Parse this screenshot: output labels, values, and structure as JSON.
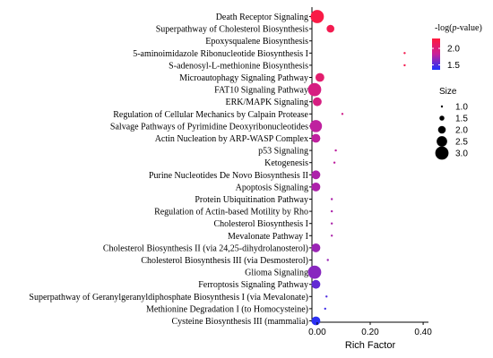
{
  "chart_data": {
    "type": "scatter",
    "title": "",
    "xlabel": "Rich Factor",
    "ylabel": "",
    "xlim": [
      -0.02,
      0.42
    ],
    "xticks": [
      "0.00",
      "0.20",
      "0.40"
    ],
    "xtick_values": [
      0.0,
      0.2,
      0.4
    ],
    "categories": [
      "Death Receptor Signaling",
      "Superpathway of Cholesterol Biosynthesis",
      "Epoxysqualene Biosynthesis",
      "5-aminoimidazole Ribonucleotide Biosynthesis I",
      "S-adenosyl-L-methionine Biosynthesis",
      "Microautophagy Signaling Pathway",
      "FAT10 Signaling Pathway",
      "ERK/MAPK Signaling",
      "Regulation of Cellular Mechanics by Calpain Protease",
      "Salvage Pathways of Pyrimidine Deoxyribonucleotides",
      "Actin Nucleation by ARP-WASP Complex",
      "p53 Signaling",
      "Ketogenesis",
      "Purine Nucleotides De Novo Biosynthesis II",
      "Apoptosis Signaling",
      "Protein Ubiquitination Pathway",
      "Regulation of Actin-based Motility by Rho",
      "Cholesterol Biosynthesis I",
      "Mevalonate Pathway I",
      "Cholesterol Biosynthesis II (via 24,25-dihydrolanosterol)",
      "Cholesterol Biosynthesis III (via Desmosterol)",
      "Glioma Signaling",
      "Ferroptosis Signaling Pathway",
      "Superpathway of Geranylgeranyldiphosphate Biosynthesis I (via Mevalonate)",
      "Methionine Degradation I (to Homocysteine)",
      "Cysteine Biosynthesis III (mammalia)"
    ],
    "points": [
      {
        "rich_factor": 0.0,
        "size": 3.0,
        "neglogp": 2.25
      },
      {
        "rich_factor": 0.05,
        "size": 2.0,
        "neglogp": 2.2
      },
      {
        "rich_factor": null,
        "size": null,
        "neglogp": null
      },
      {
        "rich_factor": 0.33,
        "size": 1.0,
        "neglogp": 2.2
      },
      {
        "rich_factor": 0.33,
        "size": 1.0,
        "neglogp": 2.2
      },
      {
        "rich_factor": 0.01,
        "size": 2.2,
        "neglogp": 2.05
      },
      {
        "rich_factor": -0.01,
        "size": 3.0,
        "neglogp": 1.95
      },
      {
        "rich_factor": 0.0,
        "size": 2.2,
        "neglogp": 1.95
      },
      {
        "rich_factor": 0.095,
        "size": 1.0,
        "neglogp": 1.9
      },
      {
        "rich_factor": -0.005,
        "size": 2.8,
        "neglogp": 1.8
      },
      {
        "rich_factor": -0.005,
        "size": 2.2,
        "neglogp": 1.8
      },
      {
        "rich_factor": 0.07,
        "size": 1.0,
        "neglogp": 1.8
      },
      {
        "rich_factor": 0.065,
        "size": 1.0,
        "neglogp": 1.8
      },
      {
        "rich_factor": -0.005,
        "size": 2.2,
        "neglogp": 1.75
      },
      {
        "rich_factor": -0.005,
        "size": 2.2,
        "neglogp": 1.75
      },
      {
        "rich_factor": 0.055,
        "size": 1.0,
        "neglogp": 1.75
      },
      {
        "rich_factor": 0.055,
        "size": 1.0,
        "neglogp": 1.75
      },
      {
        "rich_factor": 0.055,
        "size": 1.0,
        "neglogp": 1.75
      },
      {
        "rich_factor": 0.055,
        "size": 1.0,
        "neglogp": 1.75
      },
      {
        "rich_factor": -0.005,
        "size": 2.2,
        "neglogp": 1.7
      },
      {
        "rich_factor": 0.04,
        "size": 1.0,
        "neglogp": 1.7
      },
      {
        "rich_factor": -0.01,
        "size": 3.0,
        "neglogp": 1.65
      },
      {
        "rich_factor": -0.005,
        "size": 2.2,
        "neglogp": 1.55
      },
      {
        "rich_factor": 0.035,
        "size": 1.0,
        "neglogp": 1.5
      },
      {
        "rich_factor": 0.03,
        "size": 1.0,
        "neglogp": 1.45
      },
      {
        "rich_factor": -0.005,
        "size": 2.2,
        "neglogp": 1.4
      }
    ],
    "color_legend": {
      "title_prefix": "-log(",
      "title_italic": "p",
      "title_suffix": "-value)",
      "tick_labels": [
        "2.0",
        "1.5"
      ],
      "tick_values": [
        2.0,
        1.5
      ],
      "range": [
        1.35,
        2.3
      ],
      "colors": [
        "#ff1a3c",
        "#c8209a",
        "#1a33ff"
      ]
    },
    "size_legend": {
      "title": "Size",
      "labels": [
        "1.0",
        "1.5",
        "2.0",
        "2.5",
        "3.0"
      ],
      "values": [
        1.0,
        1.5,
        2.0,
        2.5,
        3.0
      ]
    },
    "grid": false,
    "legend_placement": "right"
  }
}
